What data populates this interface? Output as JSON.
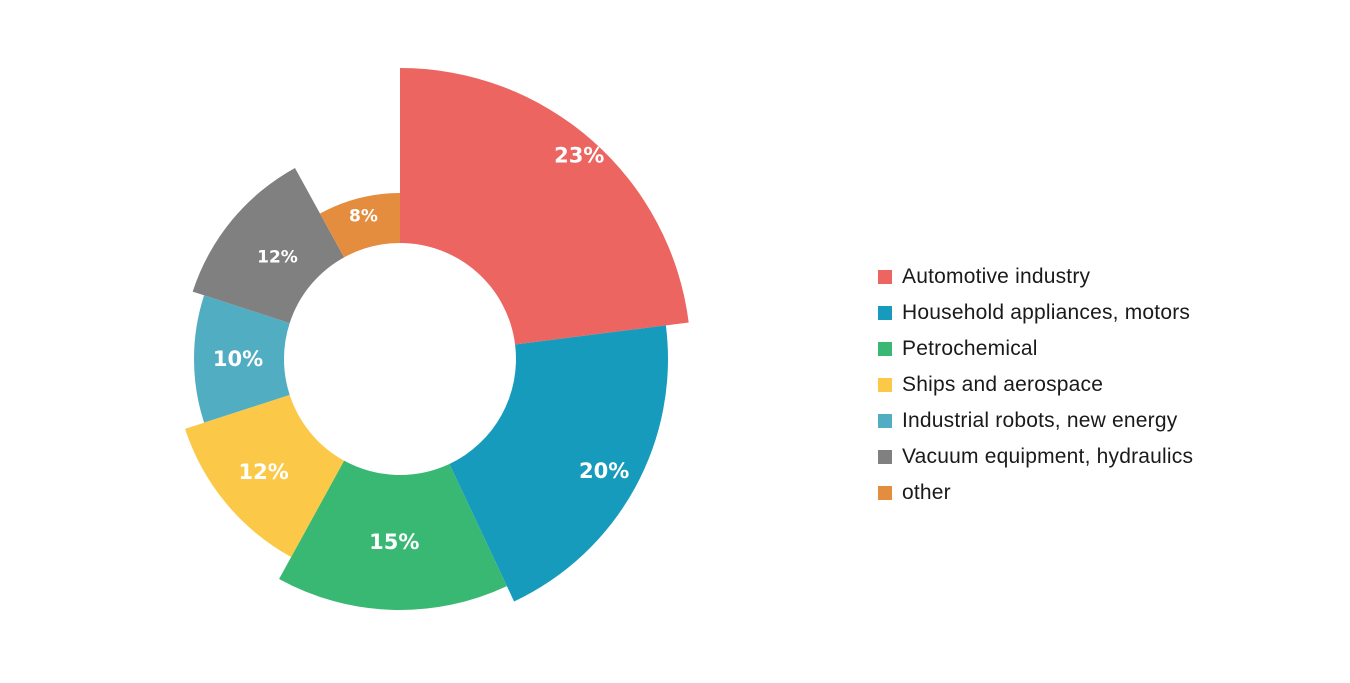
{
  "chart_data": {
    "type": "pie",
    "style": "rose-donut",
    "title": "",
    "legend_position": "right",
    "series": [
      {
        "name": "Automotive industry",
        "value": 23,
        "label": "23%",
        "color": "#EC6560"
      },
      {
        "name": "Household appliances, motors",
        "value": 20,
        "label": "20%",
        "color": "#179BBC"
      },
      {
        "name": "Petrochemical",
        "value": 15,
        "label": "15%",
        "color": "#38B873"
      },
      {
        "name": "Ships and aerospace",
        "value": 12,
        "label": "12%",
        "color": "#FCC847"
      },
      {
        "name": "Industrial robots, new energy",
        "value": 10,
        "label": "10%",
        "color": "#50ADC2"
      },
      {
        "name": "Vacuum equipment, hydraulics",
        "value": 12,
        "label": "12%",
        "color": "#7F807F"
      },
      {
        "name": "other",
        "value": 8,
        "label": "8%",
        "color": "#E58D3F"
      }
    ]
  }
}
